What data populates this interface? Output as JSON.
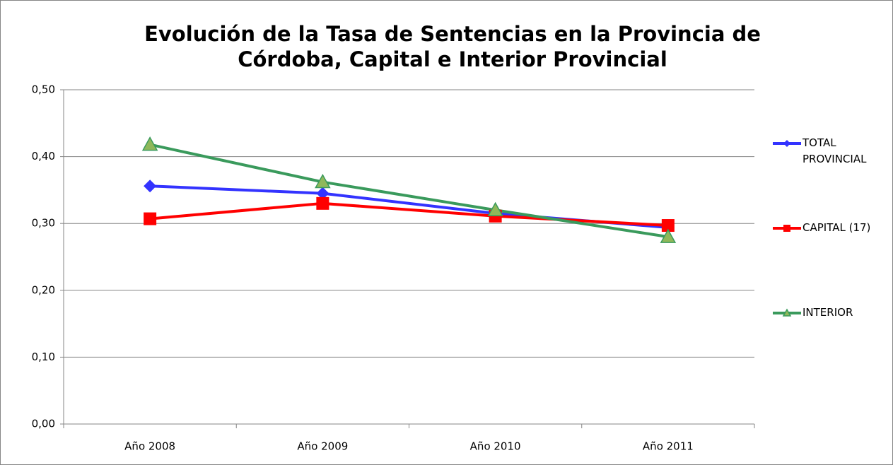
{
  "chart_data": {
    "type": "line",
    "title": "Evolución de la Tasa de Sentencias en la Provincia de Córdoba, Capital e Interior Provincial",
    "categories": [
      "Año 2008",
      "Año 2009",
      "Año 2010",
      "Año 2011"
    ],
    "series": [
      {
        "name": "TOTAL PROVINCIAL",
        "color": "#3333ff",
        "marker": "diamond",
        "values": [
          0.356,
          0.345,
          0.315,
          0.294
        ]
      },
      {
        "name": "CAPITAL (17)",
        "color": "#ff0000",
        "marker": "square",
        "values": [
          0.307,
          0.33,
          0.311,
          0.297
        ]
      },
      {
        "name": "INTERIOR",
        "color": "#3a9a5c",
        "marker": "triangle",
        "values": [
          0.418,
          0.362,
          0.32,
          0.28
        ]
      }
    ],
    "ylim": [
      0,
      0.5
    ],
    "yticks": [
      {
        "value": 0,
        "label": "0,00"
      },
      {
        "value": 0.1,
        "label": "0,10"
      },
      {
        "value": 0.2,
        "label": "0,20"
      },
      {
        "value": 0.3,
        "label": "0,30"
      },
      {
        "value": 0.4,
        "label": "0,40"
      },
      {
        "value": 0.5,
        "label": "0,50"
      }
    ],
    "grid": true,
    "legend": "right"
  }
}
